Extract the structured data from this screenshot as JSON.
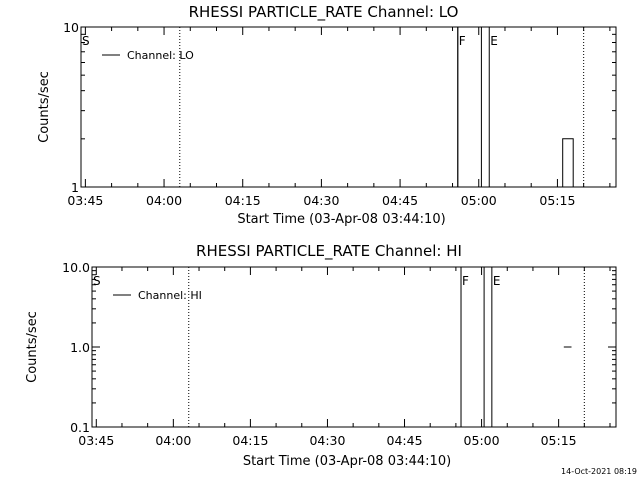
{
  "footer": {
    "timestamp": "14-Oct-2021 08:19"
  },
  "chart_data": [
    {
      "type": "line",
      "title": "RHESSI PARTICLE_RATE Channel: LO",
      "xlabel": "Start Time (03-Apr-08 03:44:10)",
      "ylabel": "Counts/sec",
      "yscale": "log",
      "xlim": [
        "03:44:10",
        "05:26:10"
      ],
      "ylim": [
        1,
        10
      ],
      "x_ticks": [
        "03:45",
        "04:00",
        "04:15",
        "04:30",
        "04:45",
        "05:00",
        "05:15"
      ],
      "y_ticks": [
        "1",
        "10"
      ],
      "legend": {
        "entries": [
          "Channel: LO"
        ],
        "position": "top-left"
      },
      "markers": [
        {
          "label": "S",
          "time": "03:44:10"
        },
        {
          "label": "F",
          "time": "04:56:00"
        },
        {
          "label": "E",
          "time": "05:02:00"
        }
      ],
      "dotted_lines": [
        "04:03:00",
        "05:20:00"
      ],
      "series": [
        {
          "name": "Channel: LO",
          "points": [
            {
              "x": "04:56:00",
              "y": 1
            },
            {
              "x": "04:56:00",
              "y": 10
            },
            {
              "x": "05:00:30",
              "y": 10
            },
            {
              "x": "05:00:30",
              "y": 1
            },
            {
              "x": "05:16:00",
              "y": 1
            },
            {
              "x": "05:16:00",
              "y": 2
            },
            {
              "x": "05:18:00",
              "y": 2
            },
            {
              "x": "05:18:00",
              "y": 1
            }
          ]
        }
      ]
    },
    {
      "type": "line",
      "title": "RHESSI PARTICLE_RATE Channel: HI",
      "xlabel": "Start Time (03-Apr-08 03:44:10)",
      "ylabel": "Counts/sec",
      "yscale": "log",
      "xlim": [
        "03:44:10",
        "05:26:10"
      ],
      "ylim": [
        0.1,
        10
      ],
      "x_ticks": [
        "03:45",
        "04:00",
        "04:15",
        "04:30",
        "04:45",
        "05:00",
        "05:15"
      ],
      "y_ticks": [
        "0.1",
        "1.0",
        "10.0"
      ],
      "legend": {
        "entries": [
          "Channel: HI"
        ],
        "position": "top-left"
      },
      "markers": [
        {
          "label": "S",
          "time": "03:44:10"
        },
        {
          "label": "F",
          "time": "04:56:00"
        },
        {
          "label": "E",
          "time": "05:02:00"
        }
      ],
      "dotted_lines": [
        "04:03:00",
        "05:20:00"
      ],
      "series": [
        {
          "name": "Channel: HI",
          "points": [
            {
              "x": "04:56:00",
              "y": 0.1
            },
            {
              "x": "04:56:00",
              "y": 10
            },
            {
              "x": "05:00:30",
              "y": 10
            },
            {
              "x": "05:00:30",
              "y": 0.1
            }
          ]
        },
        {
          "name": "Channel: HI",
          "points": [
            {
              "x": "05:16:00",
              "y": 1
            },
            {
              "x": "05:17:30",
              "y": 1
            }
          ]
        }
      ]
    }
  ]
}
